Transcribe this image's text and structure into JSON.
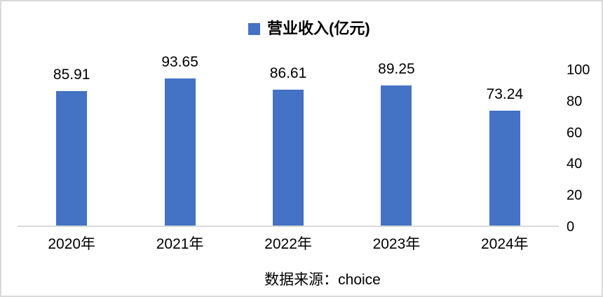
{
  "legend": {
    "label": "营业收入(亿元)"
  },
  "source": {
    "text": "数据来源：choice"
  },
  "colors": {
    "bar": "#4472C4",
    "axis_line": "#D9D9D9",
    "border": "#D9D9D9",
    "text": "#000000",
    "background": "#FFFFFF"
  },
  "chart_data": {
    "type": "bar",
    "categories": [
      "2020年",
      "2021年",
      "2022年",
      "2023年",
      "2024年"
    ],
    "values": [
      85.91,
      93.65,
      86.61,
      89.25,
      73.24
    ],
    "series_name": "营业收入(亿元)",
    "title": "",
    "xlabel": "",
    "ylabel": "",
    "ylim": [
      0,
      100
    ],
    "yticks": [
      0,
      20,
      40,
      60,
      80,
      100
    ],
    "y_axis_side": "right",
    "grid": false,
    "legend_position": "top-center",
    "data_labels_decimals": 2,
    "annotation": "数据来源：choice"
  }
}
